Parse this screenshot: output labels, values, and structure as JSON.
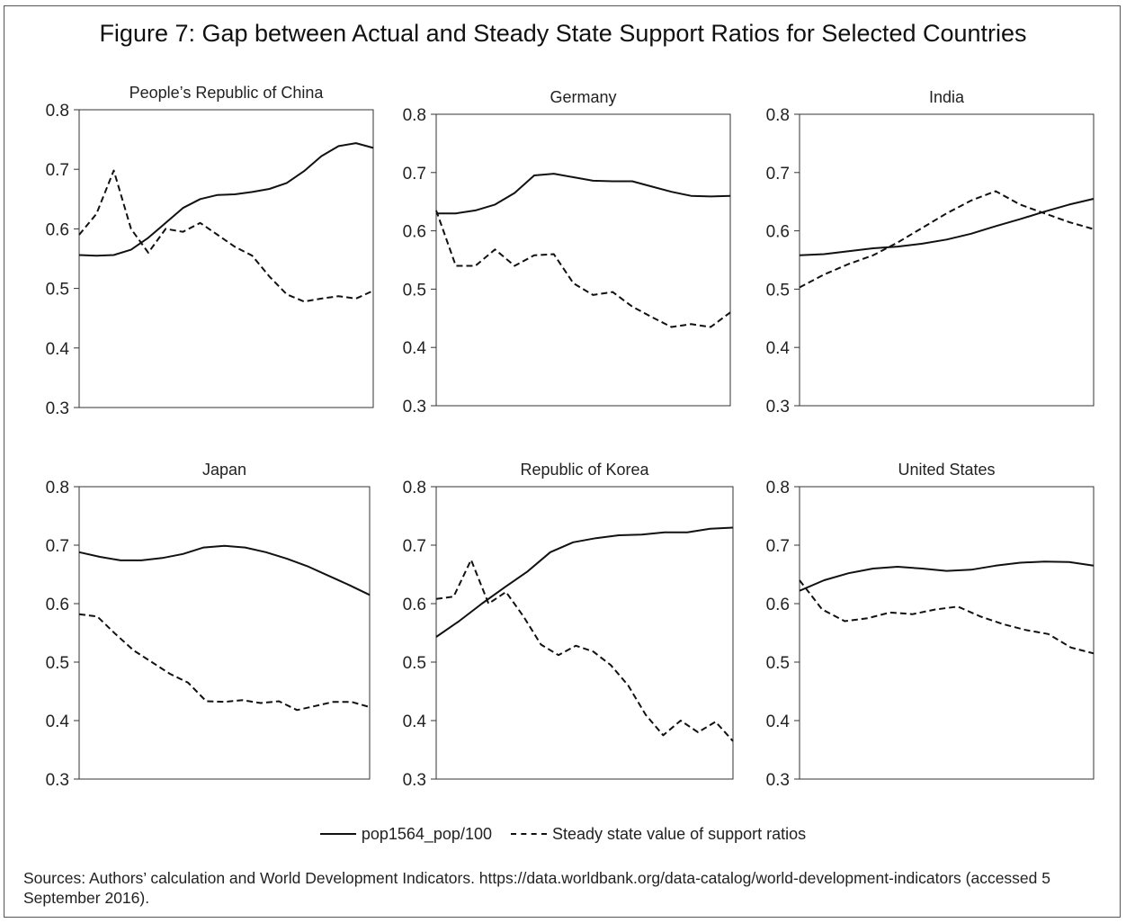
{
  "title": "Figure 7: Gap between Actual and Steady State Support Ratios for Selected Countries",
  "legend": {
    "actual": "pop1564_pop/100",
    "steady": "Steady state value of support ratios"
  },
  "sources": "Sources: Authors’ calculation and World Development Indicators. https://data.worldbank.org/data-catalog/world-development-indicators (accessed 5 September 2016).",
  "colors": {
    "line": "#111111",
    "axis": "#333333",
    "text": "#222222"
  },
  "chart_data": [
    {
      "type": "line",
      "title": "People’s Republic of China",
      "ylim": [
        0.3,
        0.8
      ],
      "yticks": [
        "0.8",
        "0.7",
        "0.6",
        "0.5",
        "0.4",
        "0.3"
      ],
      "grid": false,
      "series": [
        {
          "name": "pop1564_pop/100",
          "style": "solid",
          "values": [
            0.556,
            0.555,
            0.556,
            0.565,
            0.585,
            0.61,
            0.635,
            0.65,
            0.657,
            0.658,
            0.662,
            0.667,
            0.677,
            0.697,
            0.722,
            0.739,
            0.744,
            0.736
          ]
        },
        {
          "name": "Steady state value of support ratios",
          "style": "dashed",
          "values": [
            0.59,
            0.625,
            0.698,
            0.6,
            0.56,
            0.6,
            0.595,
            0.61,
            0.59,
            0.57,
            0.555,
            0.52,
            0.49,
            0.478,
            0.483,
            0.487,
            0.483,
            0.496
          ]
        }
      ]
    },
    {
      "type": "line",
      "title": "Germany",
      "ylim": [
        0.3,
        0.8
      ],
      "yticks": [
        "0.8",
        "0.7",
        "0.6",
        "0.5",
        "0.4",
        "0.3"
      ],
      "grid": false,
      "series": [
        {
          "name": "pop1564_pop/100",
          "style": "solid",
          "values": [
            0.63,
            0.63,
            0.635,
            0.645,
            0.665,
            0.695,
            0.698,
            0.692,
            0.686,
            0.685,
            0.685,
            0.676,
            0.667,
            0.66,
            0.659,
            0.66
          ]
        },
        {
          "name": "Steady state value of support ratios",
          "style": "dashed",
          "values": [
            0.635,
            0.54,
            0.54,
            0.568,
            0.54,
            0.558,
            0.56,
            0.51,
            0.49,
            0.495,
            0.47,
            0.452,
            0.435,
            0.44,
            0.435,
            0.46
          ]
        }
      ]
    },
    {
      "type": "line",
      "title": "India",
      "ylim": [
        0.3,
        0.8
      ],
      "yticks": [
        "0.8",
        "0.7",
        "0.6",
        "0.5",
        "0.4",
        "0.3"
      ],
      "grid": false,
      "series": [
        {
          "name": "pop1564_pop/100",
          "style": "solid",
          "values": [
            0.558,
            0.56,
            0.565,
            0.57,
            0.573,
            0.578,
            0.585,
            0.595,
            0.608,
            0.62,
            0.633,
            0.645,
            0.655
          ]
        },
        {
          "name": "Steady state value of support ratios",
          "style": "dashed",
          "values": [
            0.503,
            0.525,
            0.543,
            0.558,
            0.58,
            0.605,
            0.63,
            0.652,
            0.668,
            0.645,
            0.63,
            0.615,
            0.603
          ]
        }
      ]
    },
    {
      "type": "line",
      "title": "Japan",
      "ylim": [
        0.3,
        0.8
      ],
      "yticks": [
        "0.8",
        "0.7",
        "0.6",
        "0.5",
        "0.4",
        "0.3"
      ],
      "grid": false,
      "series": [
        {
          "name": "pop1564_pop/100",
          "style": "solid",
          "values": [
            0.688,
            0.68,
            0.674,
            0.674,
            0.678,
            0.685,
            0.696,
            0.699,
            0.696,
            0.688,
            0.677,
            0.664,
            0.648,
            0.632,
            0.615
          ]
        },
        {
          "name": "Steady state value of support ratios",
          "style": "dashed",
          "values": [
            0.582,
            0.578,
            0.548,
            0.52,
            0.5,
            0.48,
            0.465,
            0.433,
            0.432,
            0.435,
            0.43,
            0.433,
            0.418,
            0.425,
            0.432,
            0.432,
            0.423
          ]
        }
      ]
    },
    {
      "type": "line",
      "title": "Republic of Korea",
      "ylim": [
        0.3,
        0.8
      ],
      "yticks": [
        "0.8",
        "0.7",
        "0.6",
        "0.5",
        "0.4",
        "0.3"
      ],
      "grid": false,
      "series": [
        {
          "name": "pop1564_pop/100",
          "style": "solid",
          "values": [
            0.543,
            0.57,
            0.6,
            0.628,
            0.655,
            0.688,
            0.705,
            0.712,
            0.717,
            0.718,
            0.722,
            0.722,
            0.728,
            0.73
          ]
        },
        {
          "name": "Steady state value of support ratios",
          "style": "dashed",
          "values": [
            0.608,
            0.612,
            0.675,
            0.6,
            0.62,
            0.578,
            0.53,
            0.512,
            0.528,
            0.518,
            0.495,
            0.46,
            0.41,
            0.375,
            0.4,
            0.38,
            0.398,
            0.365
          ]
        }
      ]
    },
    {
      "type": "line",
      "title": "United States",
      "ylim": [
        0.3,
        0.8
      ],
      "yticks": [
        "0.8",
        "0.7",
        "0.6",
        "0.5",
        "0.4",
        "0.3"
      ],
      "grid": false,
      "series": [
        {
          "name": "pop1564_pop/100",
          "style": "solid",
          "values": [
            0.622,
            0.64,
            0.652,
            0.66,
            0.663,
            0.66,
            0.656,
            0.658,
            0.665,
            0.67,
            0.672,
            0.671,
            0.665
          ]
        },
        {
          "name": "Steady state value of support ratios",
          "style": "dashed",
          "values": [
            0.64,
            0.59,
            0.57,
            0.575,
            0.585,
            0.582,
            0.59,
            0.595,
            0.578,
            0.565,
            0.555,
            0.548,
            0.525,
            0.515
          ]
        }
      ]
    }
  ]
}
